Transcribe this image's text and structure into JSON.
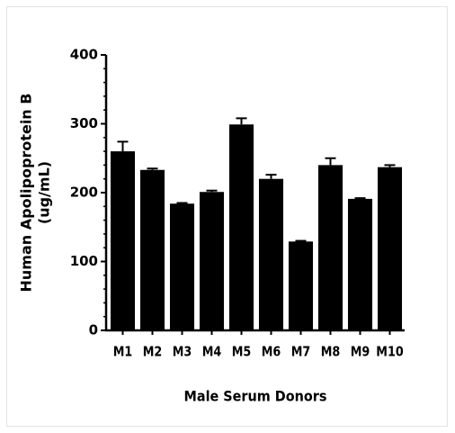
{
  "chart_data": {
    "type": "bar",
    "x_label": "Male Serum Donors",
    "y_label": [
      "Human Apolipoprotein B",
      "(ug/mL)"
    ],
    "categories": [
      "M1",
      "M2",
      "M3",
      "M4",
      "M5",
      "M6",
      "M7",
      "M8",
      "M9",
      "M10"
    ],
    "values": [
      260,
      233,
      184,
      201,
      299,
      220,
      129,
      240,
      191,
      237
    ],
    "errors": [
      14,
      2,
      1,
      2,
      9,
      6,
      1,
      10,
      1,
      3
    ],
    "color": "#000000",
    "ylim": [
      0,
      400
    ],
    "yticks": [
      0,
      100,
      200,
      300,
      400
    ],
    "yticks_minor": [
      20,
      40,
      60,
      80,
      120,
      140,
      160,
      180,
      220,
      240,
      260,
      280,
      320,
      340,
      360,
      380
    ]
  }
}
